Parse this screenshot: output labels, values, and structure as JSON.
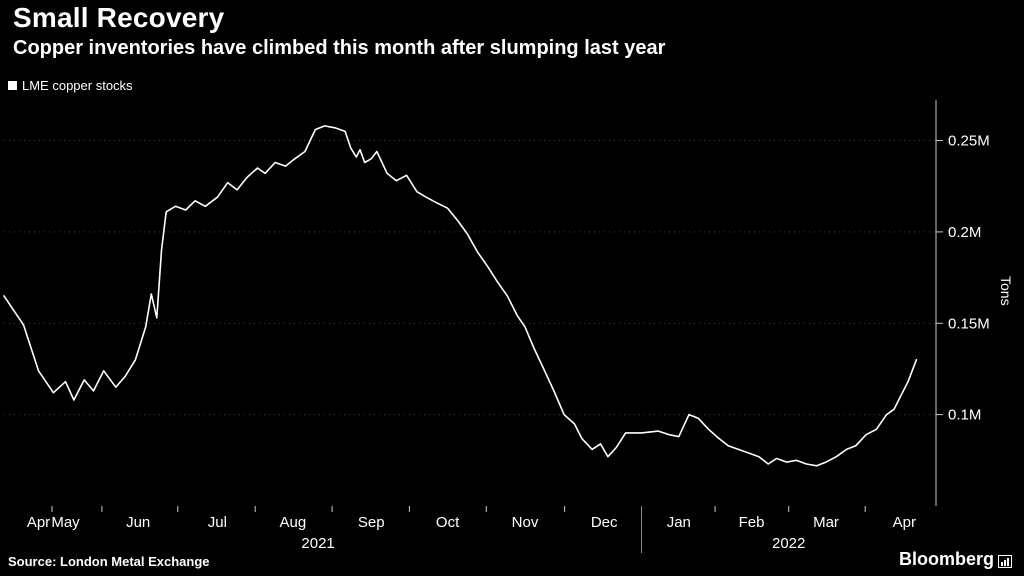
{
  "header": {
    "title": "Small Recovery",
    "subtitle": "Copper inventories have climbed this month after slumping last year"
  },
  "legend": {
    "label": "LME copper stocks",
    "marker_color": "#ffffff"
  },
  "source": "Source: London Metal Exchange",
  "branding": "Bloomberg",
  "colors": {
    "background": "#000000",
    "line": "#ffffff",
    "grid": "#454545",
    "axis": "#c8c8c8",
    "text": "#ffffff"
  },
  "chart_data": {
    "type": "line",
    "title": "Small Recovery",
    "subtitle": "Copper inventories have climbed this month after slumping last year",
    "ylabel": "Tons",
    "unit": "M = million tons",
    "ylim": [
      0.05,
      0.27
    ],
    "grid": "dotted horizontal",
    "legend_position": "top-left",
    "y_ticks": [
      {
        "value": 0.1,
        "label": "0.1M"
      },
      {
        "value": 0.15,
        "label": "0.15M"
      },
      {
        "value": 0.2,
        "label": "0.2M"
      },
      {
        "value": 0.25,
        "label": "0.25M"
      }
    ],
    "x_ticks": [
      {
        "label": "Apr",
        "pos": 0.037
      },
      {
        "label": "May",
        "pos": 0.066
      },
      {
        "label": "Jun",
        "pos": 0.144
      },
      {
        "label": "Jul",
        "pos": 0.229
      },
      {
        "label": "Aug",
        "pos": 0.31
      },
      {
        "label": "Sep",
        "pos": 0.394
      },
      {
        "label": "Oct",
        "pos": 0.476
      },
      {
        "label": "Nov",
        "pos": 0.559
      },
      {
        "label": "Dec",
        "pos": 0.644
      },
      {
        "label": "Jan",
        "pos": 0.724
      },
      {
        "label": "Feb",
        "pos": 0.802
      },
      {
        "label": "Mar",
        "pos": 0.882
      },
      {
        "label": "Apr",
        "pos": 0.966
      }
    ],
    "year_labels": [
      {
        "label": "2021",
        "pos": 0.337
      },
      {
        "label": "2022",
        "pos": 0.842
      }
    ],
    "year_divider_pos": 0.684,
    "series": [
      {
        "name": "LME copper stocks",
        "points": [
          [
            0.0,
            0.165
          ],
          [
            0.021,
            0.149
          ],
          [
            0.037,
            0.124
          ],
          [
            0.053,
            0.112
          ],
          [
            0.066,
            0.118
          ],
          [
            0.075,
            0.108
          ],
          [
            0.086,
            0.119
          ],
          [
            0.096,
            0.113
          ],
          [
            0.107,
            0.124
          ],
          [
            0.12,
            0.115
          ],
          [
            0.13,
            0.121
          ],
          [
            0.141,
            0.13
          ],
          [
            0.152,
            0.148
          ],
          [
            0.158,
            0.166
          ],
          [
            0.164,
            0.153
          ],
          [
            0.169,
            0.19
          ],
          [
            0.174,
            0.211
          ],
          [
            0.184,
            0.214
          ],
          [
            0.195,
            0.212
          ],
          [
            0.205,
            0.217
          ],
          [
            0.216,
            0.214
          ],
          [
            0.229,
            0.219
          ],
          [
            0.24,
            0.227
          ],
          [
            0.25,
            0.223
          ],
          [
            0.261,
            0.23
          ],
          [
            0.272,
            0.235
          ],
          [
            0.28,
            0.232
          ],
          [
            0.291,
            0.238
          ],
          [
            0.302,
            0.236
          ],
          [
            0.312,
            0.24
          ],
          [
            0.323,
            0.244
          ],
          [
            0.334,
            0.256
          ],
          [
            0.344,
            0.258
          ],
          [
            0.355,
            0.257
          ],
          [
            0.366,
            0.255
          ],
          [
            0.372,
            0.246
          ],
          [
            0.378,
            0.241
          ],
          [
            0.382,
            0.245
          ],
          [
            0.387,
            0.238
          ],
          [
            0.394,
            0.24
          ],
          [
            0.4,
            0.244
          ],
          [
            0.411,
            0.232
          ],
          [
            0.421,
            0.228
          ],
          [
            0.432,
            0.231
          ],
          [
            0.443,
            0.222
          ],
          [
            0.453,
            0.219
          ],
          [
            0.464,
            0.216
          ],
          [
            0.476,
            0.213
          ],
          [
            0.487,
            0.206
          ],
          [
            0.497,
            0.199
          ],
          [
            0.508,
            0.189
          ],
          [
            0.519,
            0.181
          ],
          [
            0.529,
            0.173
          ],
          [
            0.54,
            0.165
          ],
          [
            0.551,
            0.154
          ],
          [
            0.559,
            0.148
          ],
          [
            0.569,
            0.136
          ],
          [
            0.58,
            0.124
          ],
          [
            0.59,
            0.113
          ],
          [
            0.601,
            0.1
          ],
          [
            0.612,
            0.095
          ],
          [
            0.62,
            0.087
          ],
          [
            0.631,
            0.081
          ],
          [
            0.64,
            0.084
          ],
          [
            0.648,
            0.077
          ],
          [
            0.657,
            0.082
          ],
          [
            0.667,
            0.09
          ],
          [
            0.684,
            0.09
          ],
          [
            0.702,
            0.091
          ],
          [
            0.714,
            0.089
          ],
          [
            0.724,
            0.088
          ],
          [
            0.735,
            0.1
          ],
          [
            0.745,
            0.098
          ],
          [
            0.756,
            0.092
          ],
          [
            0.767,
            0.087
          ],
          [
            0.777,
            0.083
          ],
          [
            0.788,
            0.081
          ],
          [
            0.799,
            0.079
          ],
          [
            0.81,
            0.077
          ],
          [
            0.82,
            0.073
          ],
          [
            0.829,
            0.076
          ],
          [
            0.84,
            0.074
          ],
          [
            0.85,
            0.075
          ],
          [
            0.861,
            0.073
          ],
          [
            0.872,
            0.072
          ],
          [
            0.882,
            0.074
          ],
          [
            0.893,
            0.077
          ],
          [
            0.904,
            0.081
          ],
          [
            0.914,
            0.083
          ],
          [
            0.925,
            0.089
          ],
          [
            0.936,
            0.092
          ],
          [
            0.947,
            0.1
          ],
          [
            0.955,
            0.103
          ],
          [
            0.963,
            0.111
          ],
          [
            0.97,
            0.118
          ],
          [
            0.979,
            0.13
          ]
        ]
      }
    ]
  }
}
